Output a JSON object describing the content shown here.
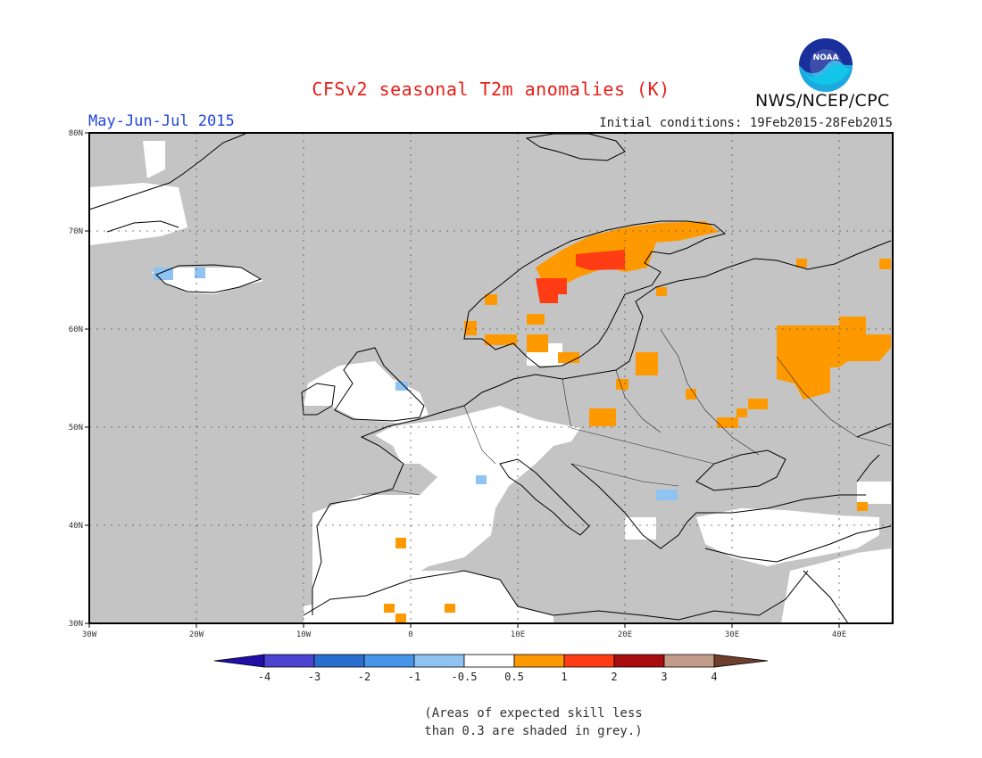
{
  "header": {
    "title": "CFSv2 seasonal T2m anomalies (K)",
    "season": "May-Jun-Jul 2015",
    "initial_conditions": "Initial conditions: 19Feb2015-28Feb2015",
    "agency": "NWS/NCEP/CPC",
    "logo_text": "NOAA"
  },
  "map": {
    "lat_ticks": [
      "80N",
      "70N",
      "60N",
      "50N",
      "40N",
      "30N"
    ],
    "lon_ticks": [
      "30W",
      "20W",
      "10W",
      "0",
      "10E",
      "20E",
      "30E",
      "40E"
    ],
    "grey_meaning": "low skill"
  },
  "colorbar": {
    "labels": [
      "-4",
      "-3",
      "-2",
      "-1",
      "-0.5",
      "0.5",
      "1",
      "2",
      "3",
      "4"
    ],
    "colors": [
      "#1d0fa8",
      "#4b44d2",
      "#2a6fd0",
      "#4596e8",
      "#8ec3f2",
      "#ffffff",
      "#ff9900",
      "#ff3c14",
      "#a80c0c",
      "#c49c8c",
      "#6e3e2c"
    ]
  },
  "footnote": {
    "line1": "(Areas of expected skill less",
    "line2": "than 0.3 are shaded in grey.)"
  },
  "colors": {
    "grey": "#c4c4c4",
    "orange": "#ff9900",
    "red": "#ff3c14",
    "lightblue": "#8ec3f2"
  }
}
